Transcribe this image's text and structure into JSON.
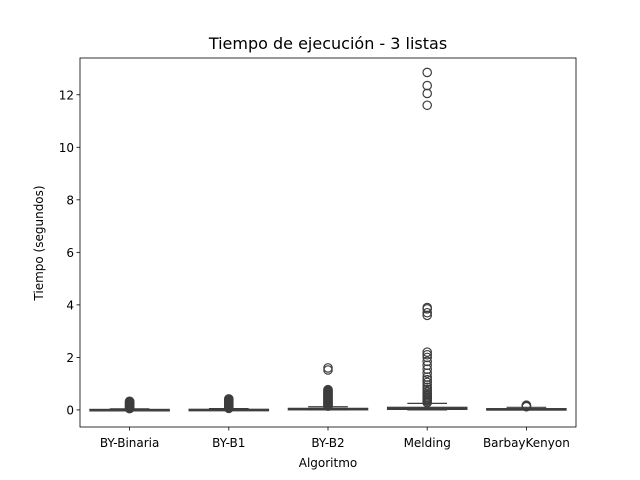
{
  "chart_data": {
    "type": "boxplot",
    "title": "Tiempo de ejecución - 3 listas",
    "xlabel": "Algoritmo",
    "ylabel": "Tiempo (segundos)",
    "ylim": [
      -0.65,
      13.4
    ],
    "yticks": [
      0,
      2,
      4,
      6,
      8,
      10,
      12
    ],
    "grid": false,
    "legend": "none",
    "colors": {
      "box_fill": "#4c72b0",
      "line": "#3d3d3d",
      "frame": "#000000"
    },
    "categories": [
      "BY-Binaria",
      "BY-B1",
      "BY-B2",
      "Melding",
      "BarbayKenyon"
    ],
    "series": [
      {
        "category": "BY-Binaria",
        "whisker_low": 0.0,
        "q1": 0.005,
        "median": 0.01,
        "q3": 0.02,
        "whisker_high": 0.04,
        "outliers": [
          0.05,
          0.07,
          0.09,
          0.11,
          0.13,
          0.15,
          0.17,
          0.19,
          0.21,
          0.23,
          0.25,
          0.27,
          0.29,
          0.31,
          0.33
        ]
      },
      {
        "category": "BY-B1",
        "whisker_low": 0.0,
        "q1": 0.005,
        "median": 0.012,
        "q3": 0.025,
        "whisker_high": 0.05,
        "outliers": [
          0.06,
          0.09,
          0.12,
          0.15,
          0.18,
          0.21,
          0.24,
          0.27,
          0.3,
          0.33,
          0.36,
          0.39,
          0.42
        ]
      },
      {
        "category": "BY-B2",
        "whisker_low": 0.0,
        "q1": 0.01,
        "median": 0.03,
        "q3": 0.06,
        "whisker_high": 0.12,
        "outliers": [
          0.14,
          0.17,
          0.2,
          0.23,
          0.26,
          0.29,
          0.32,
          0.35,
          0.38,
          0.41,
          0.44,
          0.47,
          0.5,
          0.53,
          0.56,
          0.59,
          0.62,
          0.65,
          0.68,
          0.71,
          0.74,
          0.77,
          1.52,
          1.6
        ]
      },
      {
        "category": "Melding",
        "whisker_low": 0.0,
        "q1": 0.02,
        "median": 0.05,
        "q3": 0.1,
        "whisker_high": 0.25,
        "outliers": [
          0.28,
          0.33,
          0.38,
          0.43,
          0.48,
          0.53,
          0.58,
          0.63,
          0.7,
          0.78,
          0.86,
          0.95,
          1.05,
          1.15,
          1.25,
          1.4,
          1.55,
          1.7,
          1.85,
          2.0,
          2.1,
          2.2,
          3.6,
          3.7,
          3.85,
          3.9,
          11.6,
          12.05,
          12.35,
          12.85
        ]
      },
      {
        "category": "BarbayKenyon",
        "whisker_low": 0.0,
        "q1": 0.01,
        "median": 0.03,
        "q3": 0.05,
        "whisker_high": 0.1,
        "outliers": [
          0.12,
          0.14,
          0.16,
          0.18
        ]
      }
    ]
  }
}
